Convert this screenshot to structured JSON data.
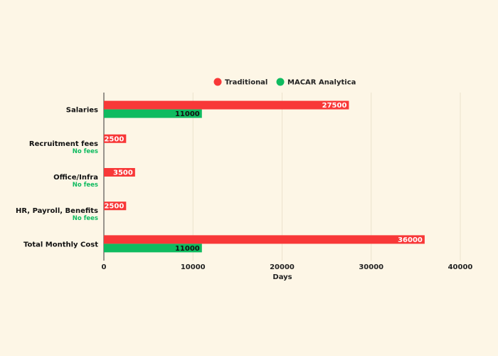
{
  "chart_data": {
    "type": "bar",
    "orientation": "horizontal",
    "categories": [
      "Salaries",
      "Recruitment fees",
      "Office/Infra",
      "HR, Payroll, Benefits",
      "Total Monthly Cost"
    ],
    "category_notes": [
      "",
      "No fees",
      "No fees",
      "No fees",
      ""
    ],
    "series": [
      {
        "name": "Traditional",
        "values": [
          27500,
          2500,
          3500,
          2500,
          36000
        ],
        "color": "#f83838"
      },
      {
        "name": "MACAR Analytica",
        "values": [
          11000,
          null,
          null,
          null,
          11000
        ],
        "color": "#0fbb60"
      }
    ],
    "xlabel": "Days",
    "ylabel": "",
    "xlim": [
      0,
      44000
    ],
    "xticks": [
      0,
      10000,
      20000,
      30000,
      40000
    ],
    "grid": true,
    "legend_position": "top-center",
    "note_color": "#0fbb60",
    "bar_label_colors": {
      "Traditional": "#ffffff",
      "MACAR Analytica": "#111111"
    }
  }
}
